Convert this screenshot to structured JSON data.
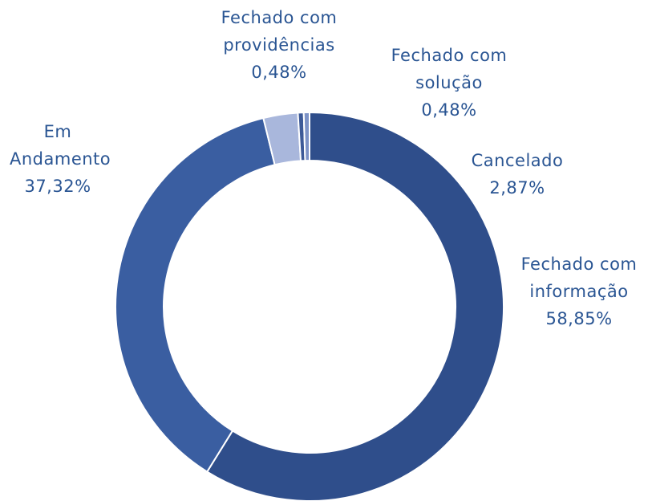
{
  "chart_data": {
    "type": "donut",
    "categories": [
      "Fechado com informação",
      "Em Andamento",
      "Cancelado",
      "Fechado com providências",
      "Fechado com solução"
    ],
    "values": [
      58.85,
      37.32,
      2.87,
      0.48,
      0.48
    ],
    "value_labels": [
      "58,85%",
      "37,32%",
      "2,87%",
      "0,48%",
      "0,48%"
    ],
    "colors": [
      "#2f4e8b",
      "#3a5ea1",
      "#a9b7dc",
      "#3d5a98",
      "#7d93c7"
    ]
  }
}
